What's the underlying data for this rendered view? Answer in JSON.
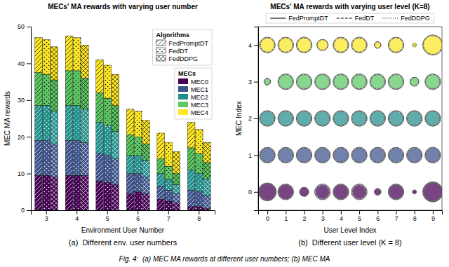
{
  "chart_data": [
    {
      "type": "bar",
      "stacked": true,
      "title": "MECs' MA rewards with varying user number",
      "x_label": "Environment User Number",
      "y_label": "MEC MA rewards",
      "categories": [
        "3",
        "4",
        "5",
        "6",
        "7",
        "8"
      ],
      "ylim": [
        0,
        50
      ],
      "yticks": [
        0,
        10,
        20,
        30,
        40,
        50
      ],
      "grid": false,
      "legend": "upper right",
      "legend_titles": [
        "Algorithms",
        "MECs"
      ],
      "groups": [
        {
          "name": "FedPromptDT",
          "marker": "diagonal"
        },
        {
          "name": "FedDT",
          "marker": "dots"
        },
        {
          "name": "FedDDPG",
          "marker": "cross"
        }
      ],
      "series": [
        {
          "name": "MEC0",
          "color": "#440154",
          "values": [
            [
              9.5,
              9.5,
              8.0,
              4.5,
              3.0,
              1.0
            ],
            [
              9.5,
              9.5,
              7.5,
              5.0,
              2.5,
              1.0
            ],
            [
              9.0,
              9.5,
              7.0,
              4.5,
              2.0,
              0.5
            ]
          ]
        },
        {
          "name": "MEC1",
          "color": "#3b528b",
          "values": [
            [
              9.5,
              9.5,
              7.5,
              5.5,
              3.5,
              4.5
            ],
            [
              9.5,
              9.5,
              7.5,
              5.0,
              3.0,
              4.0
            ],
            [
              9.0,
              9.0,
              7.0,
              4.5,
              2.5,
              3.5
            ]
          ]
        },
        {
          "name": "MEC2",
          "color": "#21908c",
          "values": [
            [
              9.5,
              9.5,
              8.5,
              5.0,
              3.5,
              5.5
            ],
            [
              9.5,
              9.5,
              8.0,
              5.0,
              3.0,
              5.0
            ],
            [
              9.0,
              9.0,
              7.5,
              4.5,
              2.5,
              4.5
            ]
          ]
        },
        {
          "name": "MEC3",
          "color": "#5dc963",
          "values": [
            [
              9.0,
              9.5,
              8.0,
              5.5,
              4.0,
              6.0
            ],
            [
              8.5,
              9.5,
              7.5,
              5.0,
              3.5,
              5.5
            ],
            [
              8.5,
              8.5,
              7.0,
              4.5,
              3.0,
              4.5
            ]
          ]
        },
        {
          "name": "MEC4",
          "color": "#fde725",
          "values": [
            [
              9.5,
              9.5,
              9.0,
              7.0,
              7.0,
              7.0
            ],
            [
              9.5,
              9.0,
              9.0,
              7.0,
              6.5,
              6.5
            ],
            [
              9.0,
              9.0,
              8.5,
              6.5,
              6.0,
              5.5
            ]
          ]
        }
      ],
      "annotations": [
        "(a)  Different env. user numbers"
      ]
    },
    {
      "type": "scatter",
      "title": "MECs' MA rewards with varying user level (K=8)",
      "x_label": "User Level Index",
      "y_label": "MEC Index",
      "x": [
        0,
        1,
        2,
        3,
        4,
        5,
        6,
        7,
        8,
        9
      ],
      "y": [
        0,
        1,
        2,
        3,
        4
      ],
      "colors": [
        "#440154",
        "#3b528b",
        "#21908c",
        "#5dc963",
        "#fde725"
      ],
      "xlim": [
        -0.5,
        9.5
      ],
      "ylim": [
        -0.5,
        4.5
      ],
      "xticks": [
        0,
        1,
        2,
        3,
        4,
        5,
        6,
        7,
        8,
        9
      ],
      "yticks": [
        0,
        1,
        2,
        3,
        4
      ],
      "grid": false,
      "legend": "top",
      "series": [
        {
          "name": "FedPromptDT",
          "line_style": "solid",
          "sizes": [
            [
              4.0,
              3.5,
              2.0,
              3.5,
              3.5,
              3.5,
              1.5,
              3.5,
              0.5,
              4.5
            ],
            [
              3.5,
              3.5,
              3.5,
              3.5,
              3.5,
              3.5,
              3.5,
              3.5,
              3.5,
              3.5
            ],
            [
              3.5,
              3.5,
              3.5,
              3.5,
              3.5,
              3.5,
              3.5,
              3.5,
              3.5,
              3.5
            ],
            [
              1.5,
              3.5,
              3.5,
              3.5,
              3.5,
              3.5,
              3.5,
              3.5,
              2.0,
              3.5
            ],
            [
              3.5,
              3.5,
              3.5,
              2.5,
              3.5,
              3.5,
              1.5,
              3.5,
              0.5,
              4.5
            ]
          ]
        },
        {
          "name": "FedDT",
          "line_style": "dashed",
          "sizes": [
            [
              3.8,
              3.2,
              2.0,
              3.0,
              3.2,
              3.0,
              1.4,
              3.2,
              0.8,
              4.2
            ],
            [
              3.2,
              3.2,
              3.2,
              3.2,
              3.2,
              3.2,
              3.2,
              3.2,
              3.2,
              3.2
            ],
            [
              3.2,
              3.2,
              3.2,
              3.2,
              3.2,
              3.2,
              3.2,
              3.2,
              3.2,
              3.2
            ],
            [
              1.4,
              3.2,
              3.2,
              3.2,
              3.2,
              3.2,
              3.2,
              3.2,
              1.9,
              3.2
            ],
            [
              3.2,
              3.2,
              3.2,
              2.4,
              3.2,
              3.2,
              1.4,
              3.2,
              0.8,
              4.2
            ]
          ]
        },
        {
          "name": "FedDDPG",
          "line_style": "dotted",
          "sizes": [
            [
              3.5,
              3.0,
              1.8,
              2.8,
              3.0,
              2.8,
              1.2,
              3.0,
              1.0,
              4.0
            ],
            [
              3.0,
              3.0,
              3.0,
              3.0,
              3.0,
              3.0,
              3.0,
              3.0,
              3.0,
              3.0
            ],
            [
              3.0,
              3.0,
              3.0,
              3.0,
              3.0,
              3.0,
              3.0,
              3.0,
              3.0,
              3.0
            ],
            [
              1.2,
              3.0,
              3.0,
              3.0,
              3.0,
              3.0,
              3.0,
              3.0,
              1.8,
              3.0
            ],
            [
              3.0,
              3.0,
              3.0,
              2.2,
              3.0,
              3.0,
              1.2,
              3.0,
              1.0,
              4.0
            ]
          ]
        }
      ],
      "annotations": [
        "(b)  Different user level (K = 8)"
      ]
    }
  ],
  "caption": "Fig. 4:  (a) MEC MA rewards at different user numbers; (b) MEC MA"
}
